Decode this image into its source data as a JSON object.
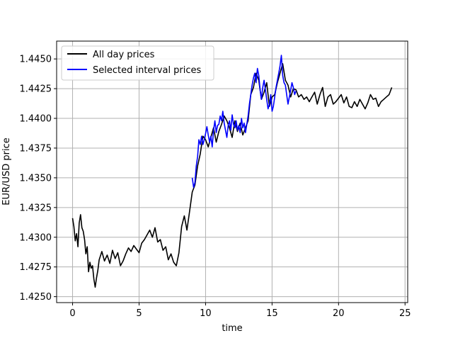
{
  "chart_data": {
    "type": "line",
    "title": "",
    "xlabel": "time",
    "ylabel": "EUR/USD price",
    "xlim": [
      -1.2,
      25.2
    ],
    "ylim": [
      1.4245,
      1.4465
    ],
    "xticks": [
      0,
      5,
      10,
      15,
      20,
      25
    ],
    "yticks": [
      1.425,
      1.4275,
      1.43,
      1.4325,
      1.435,
      1.4375,
      1.44,
      1.4425,
      1.445
    ],
    "ytick_labels": [
      "1.4250",
      "1.4275",
      "1.4300",
      "1.4325",
      "1.4350",
      "1.4375",
      "1.4400",
      "1.4425",
      "1.4450"
    ],
    "grid": true,
    "legend_position": "upper-left",
    "series": [
      {
        "name": "All day prices",
        "color": "#000000",
        "x": [
          0,
          0.1,
          0.2,
          0.3,
          0.4,
          0.5,
          0.6,
          0.7,
          0.8,
          0.9,
          1.0,
          1.1,
          1.2,
          1.3,
          1.4,
          1.5,
          1.6,
          1.7,
          1.8,
          1.9,
          2.0,
          2.2,
          2.4,
          2.6,
          2.8,
          3.0,
          3.2,
          3.4,
          3.6,
          3.8,
          4.0,
          4.2,
          4.4,
          4.6,
          4.8,
          5.0,
          5.2,
          5.4,
          5.6,
          5.8,
          6.0,
          6.2,
          6.4,
          6.6,
          6.8,
          7.0,
          7.2,
          7.4,
          7.6,
          7.8,
          8.0,
          8.2,
          8.4,
          8.6,
          8.8,
          9.0,
          9.2,
          9.4,
          9.6,
          9.8,
          10.0,
          10.2,
          10.4,
          10.6,
          10.8,
          11.0,
          11.2,
          11.4,
          11.6,
          11.8,
          12.0,
          12.2,
          12.4,
          12.6,
          12.8,
          13.0,
          13.2,
          13.4,
          13.6,
          13.8,
          14.0,
          14.2,
          14.4,
          14.6,
          14.8,
          15.0,
          15.2,
          15.4,
          15.6,
          15.8,
          16.0,
          16.2,
          16.4,
          16.6,
          16.8,
          17.0,
          17.2,
          17.4,
          17.6,
          17.8,
          18.0,
          18.2,
          18.4,
          18.6,
          18.8,
          19.0,
          19.2,
          19.4,
          19.6,
          19.8,
          20.0,
          20.2,
          20.4,
          20.6,
          20.8,
          21.0,
          21.2,
          21.4,
          21.6,
          21.8,
          22.0,
          22.2,
          22.4,
          22.6,
          22.8,
          23.0,
          23.2,
          23.4,
          23.6,
          23.8,
          24.0
        ],
        "y": [
          1.4316,
          1.4309,
          1.4297,
          1.4303,
          1.4292,
          1.4312,
          1.4319,
          1.4308,
          1.4305,
          1.4298,
          1.4286,
          1.4292,
          1.4271,
          1.4279,
          1.4274,
          1.4276,
          1.4265,
          1.4258,
          1.4266,
          1.4272,
          1.4281,
          1.4288,
          1.428,
          1.4285,
          1.4278,
          1.4289,
          1.4282,
          1.4287,
          1.4276,
          1.428,
          1.4286,
          1.4291,
          1.4288,
          1.4293,
          1.429,
          1.4287,
          1.4295,
          1.4298,
          1.4302,
          1.4306,
          1.43,
          1.4308,
          1.4296,
          1.4298,
          1.4289,
          1.4292,
          1.4281,
          1.4286,
          1.4279,
          1.4276,
          1.4287,
          1.4309,
          1.4318,
          1.4306,
          1.4322,
          1.4338,
          1.4344,
          1.436,
          1.437,
          1.4385,
          1.4382,
          1.4376,
          1.4384,
          1.4392,
          1.438,
          1.4389,
          1.4395,
          1.4402,
          1.4398,
          1.4392,
          1.4384,
          1.4398,
          1.4389,
          1.4396,
          1.4386,
          1.4392,
          1.4398,
          1.442,
          1.4426,
          1.4438,
          1.4432,
          1.4416,
          1.4422,
          1.443,
          1.441,
          1.4418,
          1.442,
          1.443,
          1.4438,
          1.4446,
          1.4432,
          1.4428,
          1.4418,
          1.4425,
          1.4424,
          1.4418,
          1.442,
          1.4416,
          1.4418,
          1.4414,
          1.4418,
          1.4422,
          1.4412,
          1.442,
          1.4426,
          1.441,
          1.4418,
          1.442,
          1.4412,
          1.4414,
          1.4417,
          1.442,
          1.4413,
          1.4418,
          1.441,
          1.4409,
          1.4414,
          1.441,
          1.4416,
          1.4412,
          1.4408,
          1.4413,
          1.442,
          1.4416,
          1.4417,
          1.441,
          1.4414,
          1.4416,
          1.4418,
          1.442,
          1.4426
        ]
      },
      {
        "name": "Selected interval prices",
        "color": "#0000ff",
        "x": [
          9.0,
          9.1,
          9.2,
          9.3,
          9.4,
          9.5,
          9.6,
          9.7,
          9.8,
          9.9,
          10.0,
          10.1,
          10.2,
          10.3,
          10.4,
          10.5,
          10.6,
          10.7,
          10.8,
          10.9,
          11.0,
          11.1,
          11.2,
          11.3,
          11.4,
          11.5,
          11.6,
          11.7,
          11.8,
          11.9,
          12.0,
          12.1,
          12.2,
          12.3,
          12.4,
          12.5,
          12.6,
          12.7,
          12.8,
          12.9,
          13.0,
          13.1,
          13.2,
          13.3,
          13.4,
          13.5,
          13.6,
          13.7,
          13.8,
          13.9,
          14.0,
          14.1,
          14.2,
          14.3,
          14.4,
          14.5,
          14.6,
          14.7,
          14.8,
          14.9,
          15.0,
          15.1,
          15.2,
          15.3,
          15.4,
          15.5,
          15.6,
          15.7,
          15.8,
          15.9,
          16.0,
          16.1,
          16.2,
          16.3,
          16.4,
          16.5,
          16.6,
          16.7,
          16.8
        ],
        "y": [
          1.435,
          1.4342,
          1.4346,
          1.436,
          1.4368,
          1.4382,
          1.4378,
          1.4385,
          1.4378,
          1.4382,
          1.4387,
          1.4393,
          1.4386,
          1.438,
          1.4385,
          1.4376,
          1.439,
          1.4398,
          1.4388,
          1.4394,
          1.4395,
          1.4402,
          1.4398,
          1.4406,
          1.4396,
          1.439,
          1.4384,
          1.4394,
          1.4398,
          1.439,
          1.4403,
          1.4395,
          1.4392,
          1.4398,
          1.439,
          1.4394,
          1.4388,
          1.44,
          1.4392,
          1.4396,
          1.4388,
          1.4395,
          1.4402,
          1.4412,
          1.442,
          1.4428,
          1.4434,
          1.4438,
          1.443,
          1.4442,
          1.4436,
          1.4424,
          1.4416,
          1.4426,
          1.4432,
          1.4424,
          1.4416,
          1.4408,
          1.4412,
          1.442,
          1.4406,
          1.441,
          1.4418,
          1.4426,
          1.4432,
          1.4438,
          1.4444,
          1.4453,
          1.4436,
          1.443,
          1.4428,
          1.442,
          1.4412,
          1.4418,
          1.4424,
          1.443,
          1.4426,
          1.442,
          1.4423
        ]
      }
    ]
  }
}
